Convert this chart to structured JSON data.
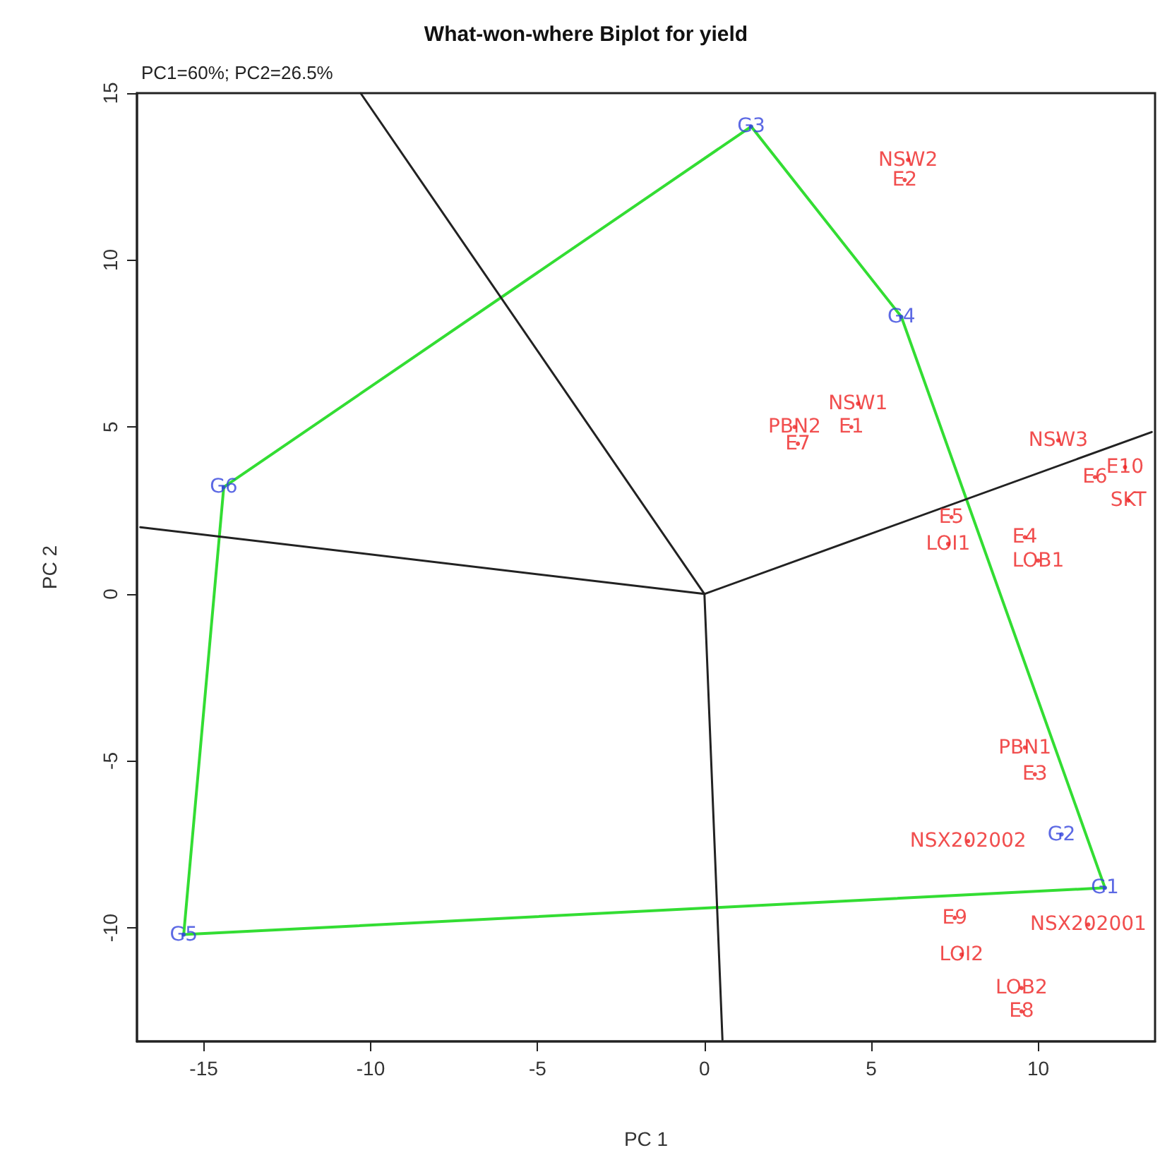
{
  "chart_data": {
    "type": "scatter",
    "title": "What-won-where Biplot for yield",
    "subtitle": "PC1=60%; PC2=26.5%",
    "xlabel": "PC 1",
    "ylabel": "PC 2",
    "xlim": [
      -17,
      13.5
    ],
    "ylim": [
      -13.4,
      15
    ],
    "xticks": [
      -15,
      -10,
      -5,
      0,
      5,
      10
    ],
    "yticks": [
      -10,
      -5,
      0,
      5,
      10,
      15
    ],
    "grid": false,
    "marker": "circle",
    "series": [
      {
        "type": "line",
        "marker": "none",
        "color": "#33dd33",
        "x": [
          1.4,
          5.9
        ],
        "values": [
          14.0,
          8.3
        ]
      },
      {
        "type": "line",
        "marker": "none",
        "color": "#33dd33",
        "x": [
          5.9,
          12.0
        ],
        "values": [
          8.3,
          -8.8
        ]
      },
      {
        "type": "line",
        "marker": "none",
        "color": "#33dd33",
        "x": [
          12.0,
          -15.6
        ],
        "values": [
          -8.8,
          -10.2
        ]
      },
      {
        "type": "line",
        "marker": "none",
        "color": "#33dd33",
        "x": [
          -15.6,
          -14.4
        ],
        "values": [
          -10.2,
          3.2
        ]
      },
      {
        "type": "line",
        "marker": "none",
        "color": "#33dd33",
        "x": [
          -14.4,
          1.4
        ],
        "values": [
          3.2,
          14.0
        ]
      },
      {
        "type": "line",
        "marker": "none",
        "color": "#222222",
        "x": [
          0,
          -10.3
        ],
        "values": [
          0,
          15
        ]
      },
      {
        "type": "line",
        "marker": "none",
        "color": "#222222",
        "x": [
          0,
          -16.9
        ],
        "values": [
          0,
          2.0
        ]
      },
      {
        "type": "line",
        "marker": "none",
        "color": "#222222",
        "x": [
          0,
          13.4
        ],
        "values": [
          0,
          4.85
        ]
      },
      {
        "type": "line",
        "marker": "none",
        "color": "#222222",
        "x": [
          0,
          0.54
        ],
        "values": [
          0,
          -13.35
        ]
      },
      {
        "type": "scatter",
        "color": "#3344dd",
        "x": [
          12.0,
          10.7,
          1.4,
          5.9,
          -15.6,
          -14.4
        ],
        "values": [
          -8.8,
          -7.2,
          14.0,
          8.3,
          -10.2,
          3.2
        ],
        "value_labels": [
          "G1",
          "G2",
          "G3",
          "G4",
          "G5",
          "G6"
        ]
      },
      {
        "type": "scatter",
        "color": "#ee2222",
        "x": [
          4.4,
          6.0,
          9.9,
          9.6,
          7.4,
          11.7,
          2.8,
          9.5,
          7.5,
          12.6
        ],
        "values": [
          5.0,
          12.4,
          -5.4,
          1.7,
          2.3,
          3.5,
          4.5,
          -12.5,
          -9.7,
          3.8
        ],
        "value_labels": [
          "E1",
          "E2",
          "E3",
          "E4",
          "E5",
          "E6",
          "E7",
          "E8",
          "E9",
          "E10"
        ]
      },
      {
        "type": "scatter",
        "color": "#ee2222",
        "x": [
          4.6,
          6.1,
          10.6,
          2.7,
          9.6,
          7.3,
          7.7,
          10.0,
          9.5,
          12.7,
          7.9,
          11.5
        ],
        "values": [
          5.7,
          13.0,
          4.6,
          5.0,
          -4.6,
          1.5,
          -10.8,
          1.0,
          -11.8,
          2.8,
          -7.4,
          -9.9
        ],
        "value_labels": [
          "NSW1",
          "NSW2",
          "NSW3",
          "PBN2",
          "PBN1",
          "LOI1",
          "LOI2",
          "LOB1",
          "LOB2",
          "SKT",
          "NSX202002",
          "NSX202001"
        ]
      }
    ]
  }
}
